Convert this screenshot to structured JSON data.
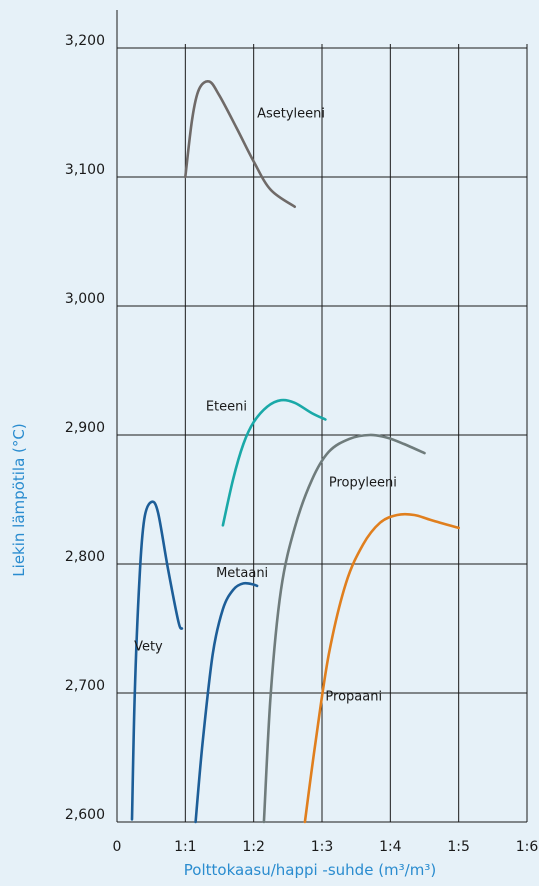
{
  "chart_data": {
    "type": "line",
    "xlabel": "Polttokaasu/happi -suhde (m³/m³)",
    "ylabel": "Liekin lämpötila (°C)",
    "xlim": [
      0,
      6
    ],
    "ylim": [
      2600,
      3200
    ],
    "x_ticks": [
      {
        "value": 0,
        "label": "0"
      },
      {
        "value": 1,
        "label": "1:1"
      },
      {
        "value": 2,
        "label": "1:2"
      },
      {
        "value": 3,
        "label": "1:3"
      },
      {
        "value": 4,
        "label": "1:4"
      },
      {
        "value": 5,
        "label": "1:5"
      },
      {
        "value": 6,
        "label": "1:6"
      }
    ],
    "y_ticks": [
      {
        "value": 2600,
        "label": "2,600"
      },
      {
        "value": 2700,
        "label": "2,700"
      },
      {
        "value": 2800,
        "label": "2,800"
      },
      {
        "value": 2900,
        "label": "2,900"
      },
      {
        "value": 3000,
        "label": "3,000"
      },
      {
        "value": 3100,
        "label": "3,100"
      },
      {
        "value": 3200,
        "label": "3,200"
      }
    ],
    "grid": true,
    "series": [
      {
        "name": "Asetyleeni",
        "color": "#6f6a68",
        "points": [
          [
            1.0,
            3100
          ],
          [
            1.1,
            3145
          ],
          [
            1.2,
            3168
          ],
          [
            1.35,
            3174
          ],
          [
            1.5,
            3163
          ],
          [
            1.75,
            3138
          ],
          [
            2.0,
            3112
          ],
          [
            2.25,
            3090
          ],
          [
            2.6,
            3077
          ]
        ]
      },
      {
        "name": "Eteeni",
        "color": "#1aa9a8",
        "points": [
          [
            1.55,
            2830
          ],
          [
            1.7,
            2866
          ],
          [
            1.85,
            2893
          ],
          [
            2.0,
            2910
          ],
          [
            2.2,
            2922
          ],
          [
            2.4,
            2927
          ],
          [
            2.6,
            2925
          ],
          [
            2.85,
            2917
          ],
          [
            3.05,
            2912
          ]
        ]
      },
      {
        "name": "Propyleeni",
        "color": "#6f7c7c",
        "points": [
          [
            2.15,
            2600
          ],
          [
            2.25,
            2700
          ],
          [
            2.4,
            2780
          ],
          [
            2.6,
            2828
          ],
          [
            2.85,
            2865
          ],
          [
            3.1,
            2887
          ],
          [
            3.4,
            2897
          ],
          [
            3.7,
            2900
          ],
          [
            3.95,
            2898
          ],
          [
            4.2,
            2893
          ],
          [
            4.5,
            2886
          ]
        ]
      },
      {
        "name": "Propaani",
        "color": "#e07f1e",
        "points": [
          [
            2.75,
            2600
          ],
          [
            2.9,
            2660
          ],
          [
            3.1,
            2730
          ],
          [
            3.35,
            2785
          ],
          [
            3.6,
            2815
          ],
          [
            3.85,
            2832
          ],
          [
            4.1,
            2838
          ],
          [
            4.35,
            2838
          ],
          [
            4.6,
            2834
          ],
          [
            5.0,
            2828
          ]
        ]
      },
      {
        "name": "Metaani",
        "color": "#1d5e98",
        "points": [
          [
            1.15,
            2600
          ],
          [
            1.25,
            2660
          ],
          [
            1.4,
            2730
          ],
          [
            1.55,
            2765
          ],
          [
            1.7,
            2780
          ],
          [
            1.85,
            2785
          ],
          [
            2.0,
            2784
          ],
          [
            2.05,
            2783
          ]
        ]
      },
      {
        "name": "Vety",
        "color": "#1d5e98",
        "points": [
          [
            0.22,
            2602
          ],
          [
            0.26,
            2700
          ],
          [
            0.33,
            2790
          ],
          [
            0.4,
            2835
          ],
          [
            0.5,
            2848
          ],
          [
            0.6,
            2840
          ],
          [
            0.75,
            2795
          ],
          [
            0.9,
            2755
          ],
          [
            0.95,
            2750
          ]
        ]
      }
    ],
    "annotations": [
      {
        "text": "Asetyleeni",
        "x": 2.05,
        "y": 3146
      },
      {
        "text": "Eteeni",
        "x": 1.3,
        "y": 2919
      },
      {
        "text": "Propyleeni",
        "x": 3.1,
        "y": 2860
      },
      {
        "text": "Propaani",
        "x": 3.05,
        "y": 2694
      },
      {
        "text": "Metaani",
        "x": 1.45,
        "y": 2790
      },
      {
        "text": "Vety",
        "x": 0.25,
        "y": 2733
      }
    ]
  }
}
